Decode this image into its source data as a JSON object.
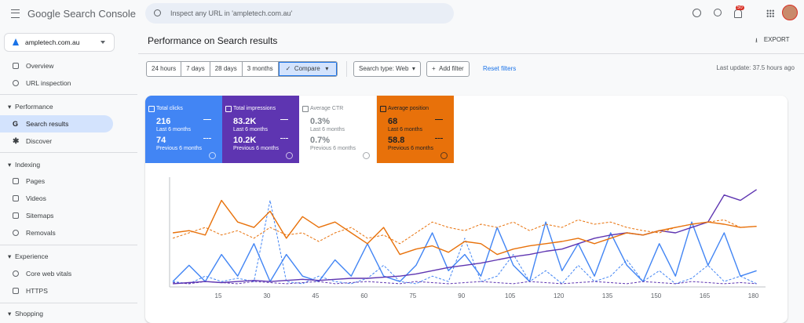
{
  "header": {
    "product": "Google Search Console",
    "search_placeholder": "Inspect any URL in 'ampletech.com.au'",
    "notification_count": "50"
  },
  "sidebar": {
    "property": "ampletech.com.au",
    "top": [
      "Overview",
      "URL inspection"
    ],
    "performance": {
      "title": "Performance",
      "items": [
        "Search results",
        "Discover"
      ]
    },
    "indexing": {
      "title": "Indexing",
      "items": [
        "Pages",
        "Videos",
        "Sitemaps",
        "Removals"
      ]
    },
    "experience": {
      "title": "Experience",
      "items": [
        "Core web vitals",
        "HTTPS"
      ]
    },
    "shopping": {
      "title": "Shopping"
    }
  },
  "page": {
    "title": "Performance on Search results",
    "export": "EXPORT",
    "date_filters": [
      "24 hours",
      "7 days",
      "28 days",
      "3 months"
    ],
    "compare": "Compare",
    "search_type": "Search type: Web",
    "add_filter": "Add filter",
    "reset": "Reset filters",
    "last_update": "Last update: 37.5 hours ago"
  },
  "period_labels": {
    "current": "Last 6 months",
    "previous": "Previous 6 months"
  },
  "metrics": [
    {
      "current": "216",
      "previous": "74"
    },
    {
      "current": "83.2K",
      "previous": "10.2K"
    },
    {
      "name": "Average CTR",
      "current": "0.3%",
      "previous": "0.7%"
    },
    {
      "current": "68",
      "previous": "58.8"
    }
  ],
  "chart_data": {
    "type": "line",
    "x": [
      1,
      6,
      11,
      16,
      21,
      26,
      31,
      36,
      41,
      46,
      51,
      56,
      61,
      66,
      71,
      76,
      81,
      86,
      91,
      96,
      101,
      106,
      111,
      116,
      121,
      126,
      131,
      136,
      141,
      146,
      151,
      156,
      161,
      166,
      171,
      176,
      181
    ],
    "xlim": [
      0,
      184
    ],
    "xticks": [
      15,
      30,
      45,
      60,
      75,
      90,
      105,
      120,
      135,
      150,
      165,
      180
    ],
    "ylim": [
      0,
      100
    ],
    "series": [
      {
        "name": "Total clicks",
        "color": "#4285f4",
        "values": [
          5,
          20,
          5,
          30,
          10,
          40,
          5,
          30,
          10,
          5,
          25,
          10,
          40,
          10,
          5,
          20,
          50,
          15,
          30,
          10,
          55,
          20,
          5,
          60,
          15,
          40,
          10,
          50,
          20,
          5,
          40,
          10,
          60,
          20,
          50,
          10,
          15
        ],
        "previous_values": [
          5,
          3,
          10,
          5,
          8,
          5,
          80,
          5,
          3,
          10,
          5,
          3,
          8,
          20,
          5,
          3,
          10,
          5,
          45,
          5,
          10,
          30,
          5,
          15,
          3,
          20,
          5,
          10,
          25,
          5,
          15,
          3,
          8,
          20,
          5,
          10,
          3
        ]
      },
      {
        "name": "Total impressions",
        "color": "#5e35b1",
        "values": [
          3,
          4,
          5,
          4,
          5,
          6,
          5,
          6,
          7,
          6,
          7,
          8,
          8,
          9,
          10,
          12,
          15,
          18,
          20,
          22,
          25,
          28,
          30,
          33,
          35,
          40,
          45,
          48,
          50,
          48,
          52,
          50,
          55,
          60,
          85,
          80,
          90
        ],
        "previous_values": [
          4,
          3,
          5,
          4,
          3,
          5,
          4,
          3,
          4,
          5,
          3,
          4,
          5,
          4,
          3,
          5,
          4,
          3,
          4,
          5,
          4,
          3,
          5,
          4,
          3,
          4,
          5,
          4,
          3,
          5,
          4,
          3,
          5,
          4,
          3,
          4,
          3
        ]
      },
      {
        "name": "Average position",
        "color": "#e8710a",
        "values": [
          50,
          52,
          48,
          80,
          60,
          55,
          70,
          45,
          65,
          55,
          60,
          50,
          40,
          55,
          30,
          35,
          38,
          32,
          42,
          40,
          30,
          35,
          38,
          40,
          42,
          45,
          40,
          45,
          50,
          48,
          52,
          55,
          58,
          60,
          58,
          55,
          56
        ],
        "previous_values": [
          45,
          50,
          55,
          48,
          52,
          45,
          55,
          48,
          50,
          42,
          50,
          55,
          45,
          48,
          40,
          50,
          60,
          55,
          52,
          58,
          55,
          60,
          52,
          58,
          55,
          62,
          58,
          60,
          55,
          52,
          50,
          55,
          58,
          60,
          62,
          55,
          56
        ]
      }
    ]
  }
}
